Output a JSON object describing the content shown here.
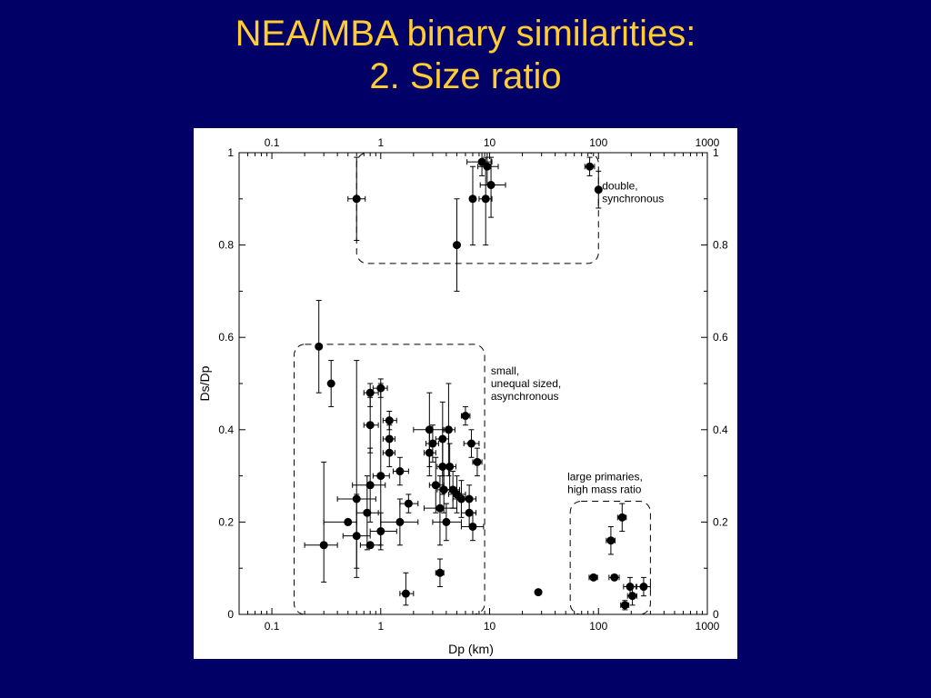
{
  "slide": {
    "title_line1": "NEA/MBA binary similarities:",
    "title_line2": "2. Size ratio"
  },
  "colors": {
    "background": "#000066",
    "title": "#ffcc33",
    "plot_background": "#ffffff",
    "marker": "#000000"
  },
  "chart_data": {
    "type": "scatter",
    "title": "",
    "xlabel": "Dp (km)",
    "ylabel": "Ds/Dp",
    "xscale": "log",
    "xlim": [
      0.05,
      1000
    ],
    "ylim": [
      0,
      1
    ],
    "x_ticks": [
      0.1,
      1,
      10,
      100,
      1000
    ],
    "x_tick_labels": [
      "0.1",
      "1",
      "10",
      "100",
      "1000"
    ],
    "y_ticks": [
      0,
      0.2,
      0.4,
      0.6,
      0.8,
      1
    ],
    "y_tick_labels": [
      "0",
      "0.2",
      "0.4",
      "0.6",
      "0.8",
      "1"
    ],
    "top_axis_mirrored": true,
    "right_axis_mirrored": true,
    "grid": false,
    "legend": "none",
    "groups": [
      {
        "label": [
          "double,",
          "synchronous"
        ],
        "box": {
          "x": [
            0.6,
            100
          ],
          "y": [
            0.76,
            1.0
          ]
        },
        "label_pos": {
          "x": 100,
          "y": 0.92
        }
      },
      {
        "label": [
          "small,",
          "unequal sized,",
          "asynchronous"
        ],
        "box": {
          "x": [
            0.16,
            9
          ],
          "y": [
            0,
            0.585
          ]
        },
        "label_pos": {
          "x": 9.5,
          "y": 0.52
        }
      },
      {
        "label": [
          "large primaries,",
          "high mass ratio"
        ],
        "box": {
          "x": [
            55,
            300
          ],
          "y": [
            0,
            0.245
          ]
        },
        "label_pos": {
          "x": 48,
          "y": 0.29
        }
      }
    ],
    "points": [
      {
        "x": 0.6,
        "y": 0.9,
        "ylo": 0.81,
        "yhi": 0.99,
        "xlo": 0.5,
        "xhi": 0.72
      },
      {
        "x": 8.5,
        "y": 0.98,
        "xlo": 6.2,
        "xhi": 10.5,
        "ylo": 0.95,
        "yhi": 1.0
      },
      {
        "x": 9.5,
        "y": 0.97,
        "xlo": 7.8,
        "xhi": 12,
        "ylo": 0.93,
        "yhi": 1.0
      },
      {
        "x": 10.3,
        "y": 0.93,
        "xlo": 8.2,
        "xhi": 14,
        "ylo": 0.86,
        "yhi": 0.99
      },
      {
        "x": 7,
        "y": 0.9,
        "ylo": 0.8,
        "yhi": 0.97
      },
      {
        "x": 9.2,
        "y": 0.9,
        "xlo": 8,
        "xhi": 10.5,
        "ylo": 0.8,
        "yhi": 0.99
      },
      {
        "x": 5,
        "y": 0.8,
        "ylo": 0.7,
        "yhi": 0.9
      },
      {
        "x": 83,
        "y": 0.97,
        "xlo": 75,
        "xhi": 92,
        "ylo": 0.95,
        "yhi": 0.99
      },
      {
        "x": 100,
        "y": 0.92,
        "ylo": 0.88,
        "yhi": 0.96
      },
      {
        "x": 0.27,
        "y": 0.58,
        "ylo": 0.48,
        "yhi": 0.68
      },
      {
        "x": 0.35,
        "y": 0.5,
        "ylo": 0.45,
        "yhi": 0.55
      },
      {
        "x": 0.3,
        "y": 0.15,
        "xlo": 0.2,
        "xhi": 0.4,
        "ylo": 0.07,
        "yhi": 0.33
      },
      {
        "x": 0.5,
        "y": 0.2,
        "xlo": 0.3,
        "xhi": 0.6
      },
      {
        "x": 0.6,
        "y": 0.25,
        "xlo": 0.4,
        "xhi": 0.9,
        "ylo": 0.1,
        "yhi": 0.55
      },
      {
        "x": 0.6,
        "y": 0.17,
        "xlo": 0.45,
        "xhi": 0.8,
        "ylo": 0.08,
        "yhi": 0.26
      },
      {
        "x": 0.75,
        "y": 0.22,
        "xlo": 0.6,
        "xhi": 0.95,
        "ylo": 0.14,
        "yhi": 0.3
      },
      {
        "x": 0.8,
        "y": 0.15,
        "xlo": 0.65,
        "xhi": 1.0
      },
      {
        "x": 0.8,
        "y": 0.28,
        "xlo": 0.55,
        "xhi": 1.1,
        "ylo": 0.2,
        "yhi": 0.36
      },
      {
        "x": 0.8,
        "y": 0.41,
        "xlo": 0.7,
        "xhi": 0.95,
        "ylo": 0.35,
        "yhi": 0.47
      },
      {
        "x": 0.8,
        "y": 0.48,
        "xlo": 0.7,
        "xhi": 0.95,
        "ylo": 0.45,
        "yhi": 0.5
      },
      {
        "x": 1.0,
        "y": 0.49,
        "xlo": 0.85,
        "xhi": 1.15,
        "ylo": 0.47,
        "yhi": 0.51
      },
      {
        "x": 1.0,
        "y": 0.3,
        "xlo": 0.85,
        "xhi": 1.2,
        "ylo": 0.15,
        "yhi": 0.5
      },
      {
        "x": 1.0,
        "y": 0.18,
        "xlo": 0.8,
        "xhi": 1.4,
        "ylo": 0.14,
        "yhi": 0.22
      },
      {
        "x": 1.2,
        "y": 0.42,
        "xlo": 1.05,
        "xhi": 1.4,
        "ylo": 0.4,
        "yhi": 0.44
      },
      {
        "x": 1.2,
        "y": 0.38,
        "xlo": 1.05,
        "xhi": 1.35,
        "ylo": 0.35,
        "yhi": 0.41
      },
      {
        "x": 1.2,
        "y": 0.35,
        "xlo": 1.05,
        "xhi": 1.35,
        "ylo": 0.32,
        "yhi": 0.38
      },
      {
        "x": 1.5,
        "y": 0.31,
        "xlo": 1.3,
        "xhi": 1.8,
        "ylo": 0.28,
        "yhi": 0.34
      },
      {
        "x": 1.5,
        "y": 0.2,
        "xlo": 1.0,
        "xhi": 2.2,
        "ylo": 0.15,
        "yhi": 0.25
      },
      {
        "x": 1.8,
        "y": 0.24,
        "xlo": 1.5,
        "xhi": 2.2,
        "ylo": 0.22,
        "yhi": 0.26
      },
      {
        "x": 1.7,
        "y": 0.045,
        "xlo": 1.5,
        "xhi": 2.0,
        "ylo": 0.02,
        "yhi": 0.09
      },
      {
        "x": 2.8,
        "y": 0.4,
        "xlo": 2.0,
        "xhi": 3.8,
        "ylo": 0.32,
        "yhi": 0.48
      },
      {
        "x": 2.8,
        "y": 0.35,
        "xlo": 2.5,
        "xhi": 3.2,
        "ylo": 0.3,
        "yhi": 0.4
      },
      {
        "x": 3.0,
        "y": 0.37,
        "xlo": 2.6,
        "xhi": 3.4,
        "ylo": 0.33,
        "yhi": 0.41
      },
      {
        "x": 3.2,
        "y": 0.28,
        "xlo": 2.8,
        "xhi": 3.8,
        "ylo": 0.22,
        "yhi": 0.34
      },
      {
        "x": 3.5,
        "y": 0.23,
        "xlo": 2.5,
        "xhi": 5.0,
        "ylo": 0.15,
        "yhi": 0.3
      },
      {
        "x": 3.5,
        "y": 0.09,
        "xlo": 3.2,
        "xhi": 3.8,
        "ylo": 0.06,
        "yhi": 0.12
      },
      {
        "x": 3.7,
        "y": 0.38,
        "xlo": 3.2,
        "xhi": 4.2,
        "ylo": 0.3,
        "yhi": 0.46
      },
      {
        "x": 3.7,
        "y": 0.32,
        "xlo": 3.3,
        "xhi": 4.2,
        "ylo": 0.26,
        "yhi": 0.38
      },
      {
        "x": 3.8,
        "y": 0.27,
        "xlo": 3.3,
        "xhi": 4.3,
        "ylo": 0.22,
        "yhi": 0.32
      },
      {
        "x": 4.0,
        "y": 0.2,
        "xlo": 3.0,
        "xhi": 5.5,
        "ylo": 0.16,
        "yhi": 0.24
      },
      {
        "x": 4.2,
        "y": 0.4,
        "xlo": 3.7,
        "xhi": 4.8,
        "ylo": 0.3,
        "yhi": 0.5
      },
      {
        "x": 4.3,
        "y": 0.32,
        "xlo": 3.8,
        "xhi": 4.9,
        "ylo": 0.27,
        "yhi": 0.37
      },
      {
        "x": 4.6,
        "y": 0.27,
        "xlo": 4.0,
        "xhi": 5.3,
        "ylo": 0.23,
        "yhi": 0.31
      },
      {
        "x": 5.0,
        "y": 0.26,
        "xlo": 4.2,
        "xhi": 6.0,
        "ylo": 0.22,
        "yhi": 0.3
      },
      {
        "x": 5.5,
        "y": 0.25,
        "xlo": 4.6,
        "xhi": 6.5,
        "ylo": 0.21,
        "yhi": 0.29
      },
      {
        "x": 6.0,
        "y": 0.43,
        "xlo": 5.5,
        "xhi": 6.6,
        "ylo": 0.41,
        "yhi": 0.45
      },
      {
        "x": 6.5,
        "y": 0.25,
        "xlo": 5.5,
        "xhi": 7.5,
        "ylo": 0.22,
        "yhi": 0.28
      },
      {
        "x": 6.5,
        "y": 0.22,
        "xlo": 5.5,
        "xhi": 7.5,
        "ylo": 0.19,
        "yhi": 0.25
      },
      {
        "x": 6.8,
        "y": 0.37,
        "xlo": 5.8,
        "xhi": 8.0,
        "ylo": 0.34,
        "yhi": 0.4
      },
      {
        "x": 7.0,
        "y": 0.19,
        "xlo": 5.5,
        "xhi": 8.8,
        "ylo": 0.16,
        "yhi": 0.22
      },
      {
        "x": 7.7,
        "y": 0.33,
        "xlo": 7.0,
        "xhi": 8.5,
        "ylo": 0.3,
        "yhi": 0.36
      },
      {
        "x": 28,
        "y": 0.048
      },
      {
        "x": 90,
        "y": 0.08,
        "xlo": 82,
        "xhi": 98
      },
      {
        "x": 130,
        "y": 0.16,
        "xlo": 118,
        "xhi": 142,
        "ylo": 0.13,
        "yhi": 0.19
      },
      {
        "x": 140,
        "y": 0.08,
        "xlo": 125,
        "xhi": 155
      },
      {
        "x": 165,
        "y": 0.21,
        "xlo": 150,
        "xhi": 180,
        "ylo": 0.18,
        "yhi": 0.24
      },
      {
        "x": 175,
        "y": 0.02,
        "xlo": 160,
        "xhi": 190,
        "ylo": 0.01,
        "yhi": 0.03
      },
      {
        "x": 195,
        "y": 0.06,
        "xlo": 170,
        "xhi": 220,
        "ylo": 0.04,
        "yhi": 0.08
      },
      {
        "x": 205,
        "y": 0.04,
        "xlo": 185,
        "xhi": 225,
        "ylo": 0.02,
        "yhi": 0.06
      },
      {
        "x": 260,
        "y": 0.06,
        "xlo": 225,
        "xhi": 300,
        "ylo": 0.04,
        "yhi": 0.08
      }
    ]
  }
}
